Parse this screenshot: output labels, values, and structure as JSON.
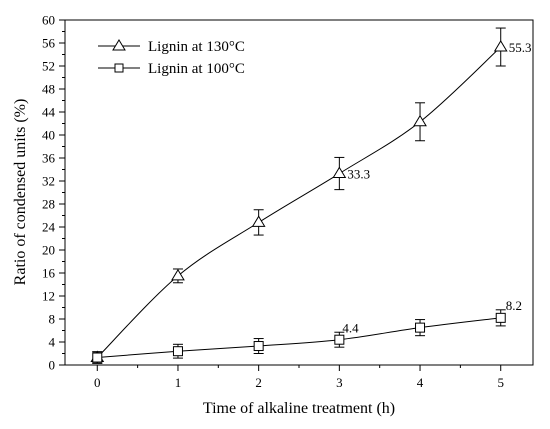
{
  "chart_data": {
    "type": "line",
    "title": "",
    "xlabel": "Time of alkaline treatment (h)",
    "ylabel": "Ratio of condensed units (%)",
    "xlim": [
      -0.4,
      5.4
    ],
    "ylim": [
      0,
      60
    ],
    "x_ticks": [
      "0",
      "1",
      "2",
      "3",
      "4",
      "5"
    ],
    "y_ticks": [
      "0",
      "4",
      "8",
      "12",
      "16",
      "20",
      "24",
      "28",
      "32",
      "36",
      "40",
      "44",
      "48",
      "52",
      "56",
      "60"
    ],
    "grid": false,
    "legend_position": "top-left",
    "series": [
      {
        "name": "Lignin at 130°C",
        "marker": "triangle",
        "x": [
          0,
          1,
          2,
          3,
          4,
          5
        ],
        "y": [
          1.3,
          15.5,
          24.8,
          33.3,
          42.3,
          55.3
        ],
        "error": [
          1.0,
          1.2,
          2.2,
          2.8,
          3.3,
          3.3
        ]
      },
      {
        "name": "Lignin at 100°C",
        "marker": "square",
        "x": [
          0,
          1,
          2,
          3,
          4,
          5
        ],
        "y": [
          1.3,
          2.4,
          3.3,
          4.4,
          6.5,
          8.2
        ],
        "error": [
          1.0,
          1.2,
          1.3,
          1.3,
          1.4,
          1.4
        ]
      }
    ],
    "annotations": [
      {
        "text": "55.3",
        "x": 5,
        "y": 55.3
      },
      {
        "text": "33.3",
        "x": 3,
        "y": 33.3
      },
      {
        "text": "4.4",
        "x": 3,
        "y": 4.4
      },
      {
        "text": "8.2",
        "x": 5,
        "y": 8.2
      }
    ]
  }
}
